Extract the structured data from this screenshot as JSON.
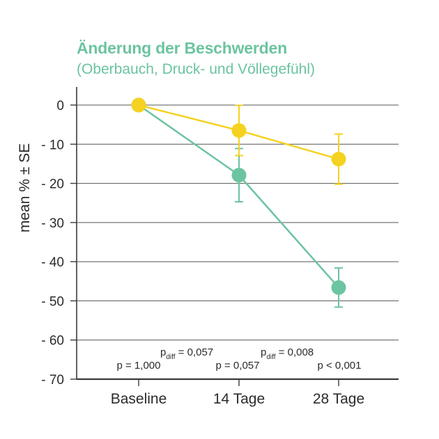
{
  "colors": {
    "title": "#6cc4a0",
    "subtitle": "#6cc4a0",
    "series_green": "#6cc4a0",
    "series_yellow": "#f5d21f",
    "axis": "#3a3a3a",
    "grid": "#555555"
  },
  "chart_data": {
    "type": "line",
    "title": "Änderung der Beschwerden",
    "subtitle": "(Oberbauch, Druck- und Völlegefühl)",
    "ylabel": "mean % ± SE",
    "xlabel": "",
    "ylim": [
      -70,
      0
    ],
    "yticks": [
      0,
      -10,
      -20,
      -30,
      -40,
      -50,
      -60,
      -70
    ],
    "ytick_labels": [
      "0",
      "- 10",
      "- 20",
      "- 30",
      "- 40",
      "- 50",
      "- 60",
      "- 70"
    ],
    "grid": true,
    "categories": [
      "Baseline",
      "14 Tage",
      "28 Tage"
    ],
    "series": [
      {
        "color_key": "series_yellow",
        "values": [
          0,
          -6.5,
          -13.8
        ],
        "error": [
          0,
          6.4,
          6.4
        ]
      },
      {
        "color_key": "series_green",
        "values": [
          0,
          -17.9,
          -46.6
        ],
        "error": [
          0,
          6.8,
          5.0
        ]
      }
    ],
    "annotations": {
      "p_values": [
        "p = 1,000",
        "p = 0,057",
        "p < 0,001"
      ],
      "p_diff": [
        {
          "p": "p",
          "sub": "diff",
          "value": " = 0,057"
        },
        {
          "p": "p",
          "sub": "diff",
          "value": " = 0,008"
        }
      ]
    }
  }
}
